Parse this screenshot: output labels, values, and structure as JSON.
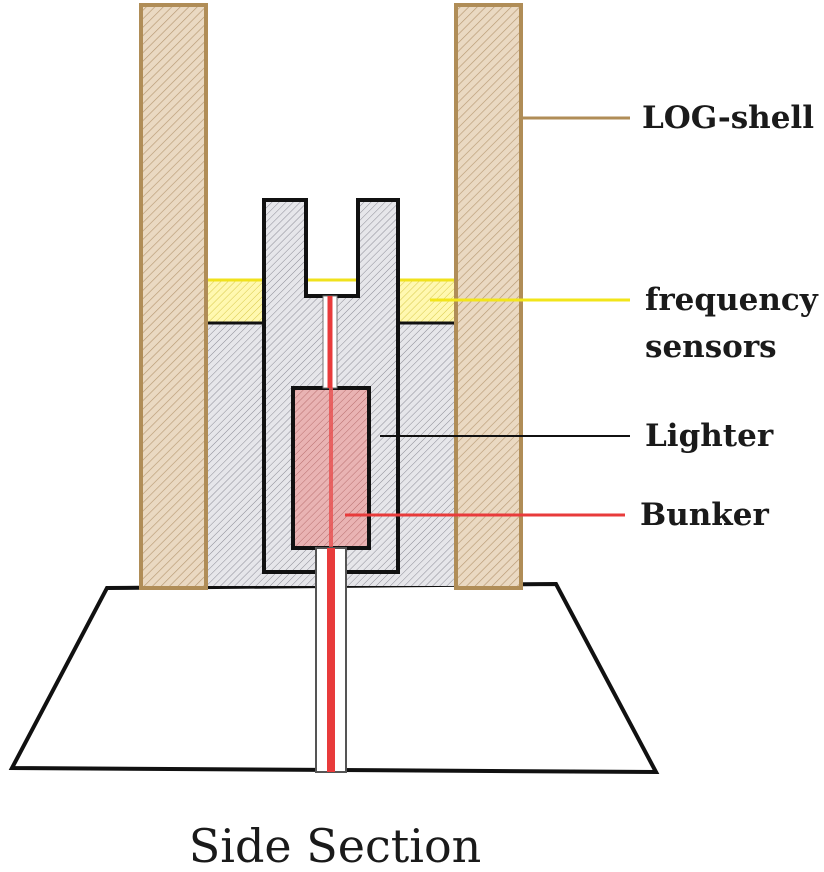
{
  "labels": {
    "log_shell": "LOG-shell",
    "frequency_line1": "frequency",
    "frequency_line2": "sensors",
    "lighter": "Lighter",
    "bunker": "Bunker"
  },
  "caption": "Side Section",
  "colors": {
    "log_shell_fill": "#e8d6bd",
    "log_shell_stroke": "#b08d57",
    "sensor_fill": "#fff6a8",
    "sensor_line": "#f2e51a",
    "inner_fill": "#e3e3e8",
    "bunker_fill": "#e2a7a7",
    "wire_red": "#e83b3b",
    "outline": "#111111"
  }
}
